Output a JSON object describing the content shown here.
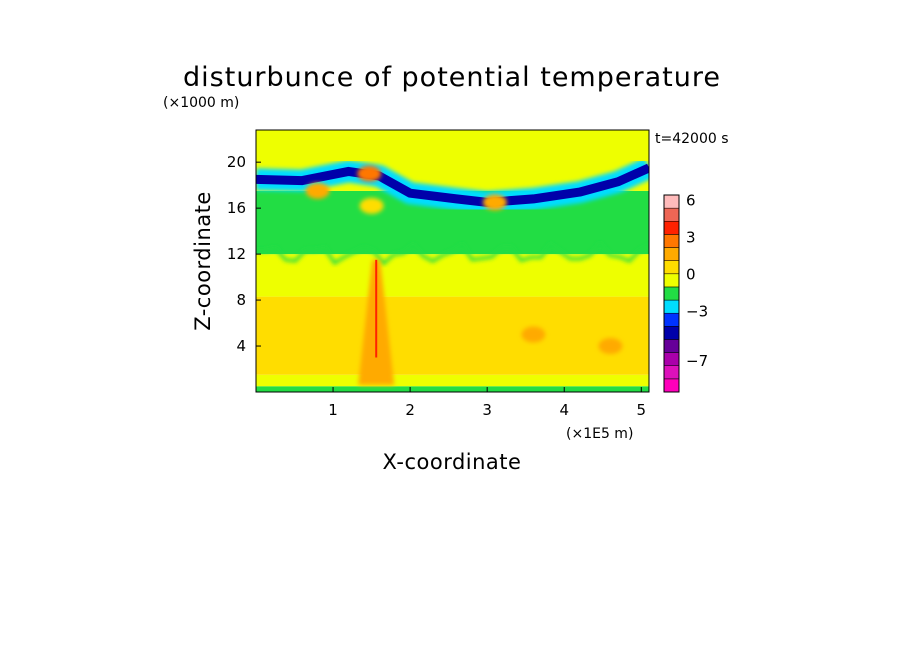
{
  "chart_data": {
    "type": "heatmap",
    "title": "disturbunce of potential temperature",
    "time_label": "t=42000 s",
    "xlabel": "X-coordinate",
    "ylabel": "Z-coordinate",
    "x_unit": "(×1E5 m)",
    "y_unit": "(×1000 m)",
    "xlim": [
      0,
      5.1
    ],
    "ylim": [
      0,
      22.8
    ],
    "x_ticks": [
      {
        "value": 1,
        "label": "1"
      },
      {
        "value": 2,
        "label": "2"
      },
      {
        "value": 3,
        "label": "3"
      },
      {
        "value": 4,
        "label": "4"
      },
      {
        "value": 5,
        "label": "5"
      }
    ],
    "y_ticks": [
      {
        "value": 4,
        "label": "4"
      },
      {
        "value": 8,
        "label": "8"
      },
      {
        "value": 12,
        "label": "12"
      },
      {
        "value": 16,
        "label": "16"
      },
      {
        "value": 20,
        "label": "20"
      }
    ],
    "colorbar": {
      "min": -9,
      "max": 7,
      "colors": [
        "#ff00bb",
        "#dd11bb",
        "#aa00aa",
        "#660099",
        "#0000aa",
        "#0033ff",
        "#00ddff",
        "#22dd44",
        "#eeff00",
        "#ffdd00",
        "#ffaa00",
        "#ff7700",
        "#ff2200",
        "#ee6655",
        "#ffbbbb"
      ],
      "tick_labels": [
        {
          "value": 6,
          "label": "6"
        },
        {
          "value": 3,
          "label": "3"
        },
        {
          "value": 0,
          "label": "0"
        },
        {
          "value": -3,
          "label": "−3"
        },
        {
          "value": -7,
          "label": "−7"
        }
      ]
    },
    "regions": {
      "surface_green": [
        [
          0,
          0,
          5.1,
          0.5
        ]
      ],
      "lower_yellow": [
        [
          0,
          0.5,
          5.1,
          1.5
        ]
      ],
      "lower_orange": [
        [
          0,
          1.5,
          5.1,
          8.3
        ]
      ],
      "mid_yellow": [
        [
          0,
          8.3,
          5.1,
          12.0
        ]
      ],
      "upper_green": [
        [
          0,
          12.0,
          5.1,
          17.5
        ]
      ],
      "top_yellow": [
        [
          0,
          17.5,
          5.1,
          22.8
        ]
      ]
    },
    "features": [
      {
        "type": "band",
        "value": -4,
        "points": [
          [
            0,
            18.5
          ],
          [
            0.6,
            18.4
          ],
          [
            1.2,
            19.2
          ],
          [
            1.6,
            18.8
          ],
          [
            2.0,
            17.3
          ],
          [
            2.6,
            16.8
          ],
          [
            3.0,
            16.5
          ],
          [
            3.6,
            16.8
          ],
          [
            4.2,
            17.4
          ],
          [
            4.7,
            18.3
          ],
          [
            5.1,
            19.5
          ]
        ]
      },
      {
        "type": "blob",
        "value": 2,
        "x": 0.8,
        "z": 17.5
      },
      {
        "type": "blob",
        "value": 3,
        "x": 1.47,
        "z": 19.0
      },
      {
        "type": "blob",
        "value": 2,
        "x": 3.1,
        "z": 16.5
      },
      {
        "type": "blob",
        "value": 1,
        "x": 1.5,
        "z": 16.2
      },
      {
        "type": "plume",
        "value": 4,
        "x": 1.56,
        "z_top": 11.5
      },
      {
        "type": "blob",
        "value": 2,
        "x": 4.6,
        "z": 4.0
      },
      {
        "type": "blob",
        "value": 2,
        "x": 3.6,
        "z": 5.0
      }
    ]
  }
}
